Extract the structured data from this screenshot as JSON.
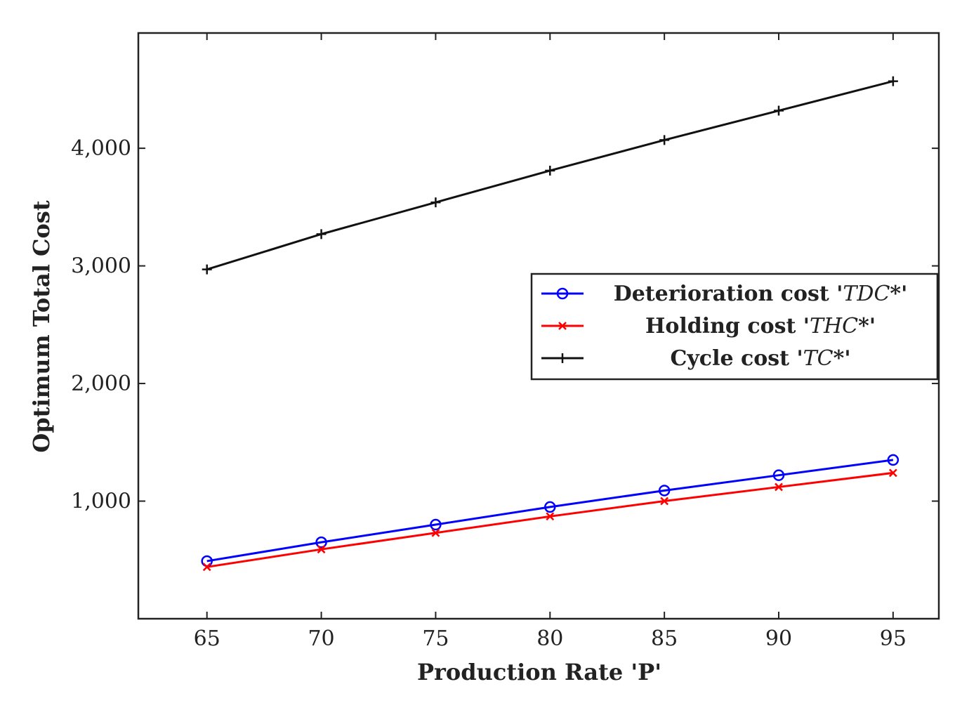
{
  "chart_data": {
    "type": "line",
    "title": "",
    "xlabel": "Production Rate 'P'",
    "ylabel": "Optimum Total Cost",
    "x": [
      65,
      70,
      75,
      80,
      85,
      90,
      95
    ],
    "xticks": [
      "65",
      "70",
      "75",
      "80",
      "85",
      "90",
      "95"
    ],
    "xlim": [
      62,
      97
    ],
    "yticks": [
      "1,000",
      "2,000",
      "3,000",
      "4,000"
    ],
    "ytick_values": [
      1000,
      2000,
      3000,
      4000
    ],
    "ylim": [
      0,
      4980
    ],
    "grid": false,
    "legend_position": "center-right",
    "series": [
      {
        "name": "Deterioration cost 'TDC*'",
        "legend_prefix": "Deterioration cost '",
        "legend_italic": "TDC",
        "legend_suffix": "*'",
        "color": "#0000ff",
        "marker": "circle",
        "values": [
          490,
          650,
          800,
          950,
          1090,
          1220,
          1350
        ]
      },
      {
        "name": "Holding cost 'THC*'",
        "legend_prefix": "Holding cost '",
        "legend_italic": "THC",
        "legend_suffix": "*'",
        "color": "#ff0000",
        "marker": "x",
        "values": [
          440,
          590,
          730,
          870,
          1000,
          1120,
          1240
        ]
      },
      {
        "name": "Cycle cost 'TC*'",
        "legend_prefix": "Cycle cost '",
        "legend_italic": "TC",
        "legend_suffix": "*'",
        "color": "#111111",
        "marker": "plus",
        "values": [
          2970,
          3270,
          3540,
          3810,
          4070,
          4320,
          4570
        ]
      }
    ]
  }
}
